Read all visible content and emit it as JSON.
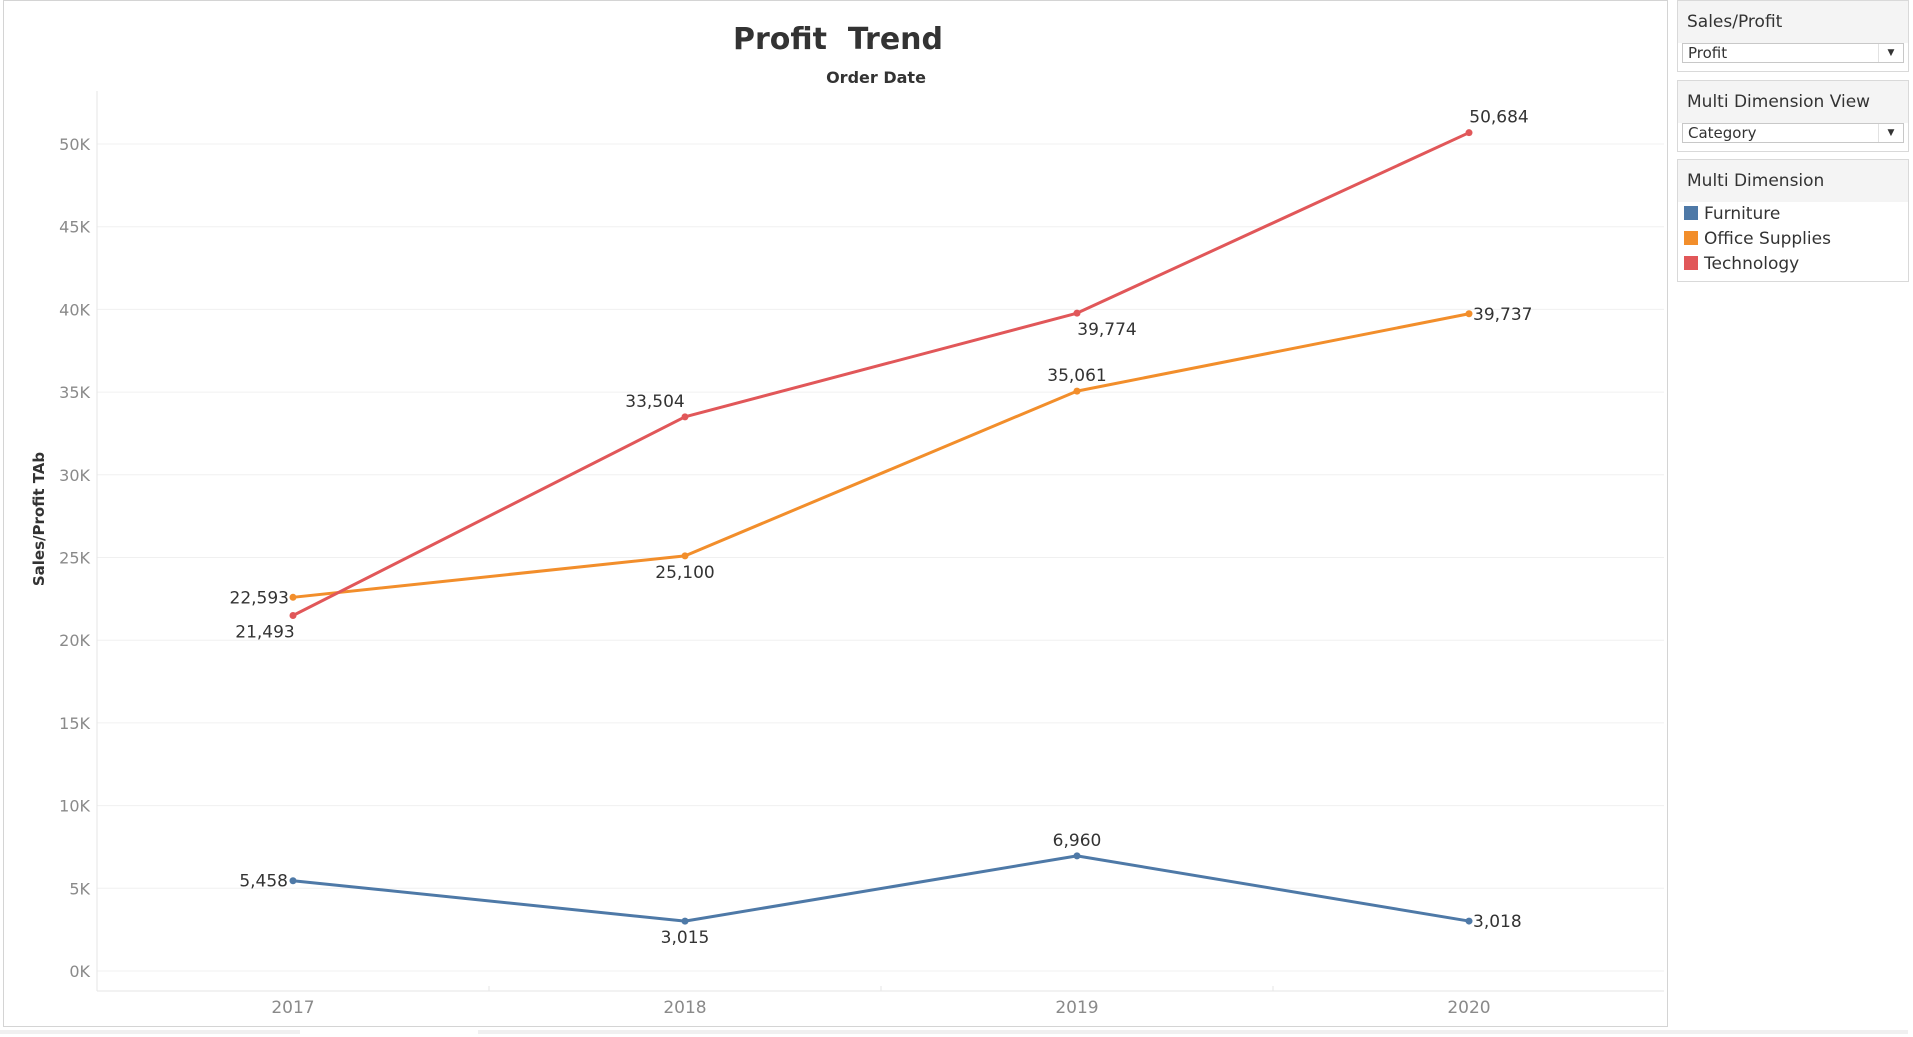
{
  "filters": {
    "measure": {
      "title": "Sales/Profit",
      "value": "Profit"
    },
    "view": {
      "title": "Multi Dimension View",
      "value": "Category"
    }
  },
  "legend": {
    "title": "Multi Dimension",
    "items": [
      {
        "label": "Furniture",
        "color": "#4e79a7"
      },
      {
        "label": "Office Supplies",
        "color": "#f28e2b"
      },
      {
        "label": "Technology",
        "color": "#e15759"
      }
    ]
  },
  "chart_data": {
    "type": "line",
    "title": "Profit  Trend",
    "subtitle": "Order Date",
    "ylabel": "Sales/Profit TAb",
    "xlabel": "",
    "categories": [
      "2017",
      "2018",
      "2019",
      "2020"
    ],
    "ylim": [
      0,
      54000
    ],
    "yticks": [
      0,
      5000,
      10000,
      15000,
      20000,
      25000,
      30000,
      35000,
      40000,
      45000,
      50000
    ],
    "ytick_labels": [
      "0K",
      "5K",
      "10K",
      "15K",
      "20K",
      "25K",
      "30K",
      "35K",
      "40K",
      "45K",
      "50K"
    ],
    "grid": true,
    "series": [
      {
        "name": "Furniture",
        "color": "#4e79a7",
        "values": [
          5458,
          3015,
          6960,
          3018
        ],
        "labels": [
          "5,458",
          "3,015",
          "6,960",
          "3,018"
        ]
      },
      {
        "name": "Office Supplies",
        "color": "#f28e2b",
        "values": [
          22593,
          25100,
          35061,
          39737
        ],
        "labels": [
          "22,593",
          "25,100",
          "35,061",
          "39,737"
        ]
      },
      {
        "name": "Technology",
        "color": "#e15759",
        "values": [
          21493,
          33504,
          39774,
          50684
        ],
        "labels": [
          "21,493",
          "33,504",
          "39,774",
          "50,684"
        ]
      }
    ]
  }
}
